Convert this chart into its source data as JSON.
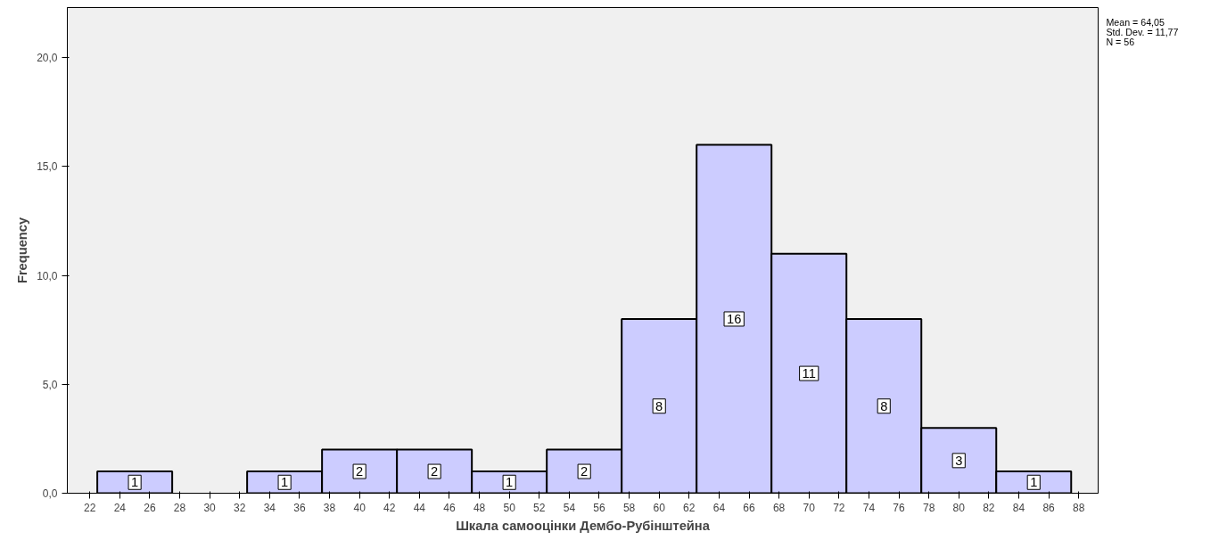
{
  "chart_data": {
    "type": "histogram",
    "xlabel": "Шкала самооцінки Дембо-Рубінштейна",
    "ylabel": "Frequency",
    "bins": [
      22.5,
      27.5,
      32.5,
      37.5,
      42.5,
      47.5,
      52.5,
      57.5,
      62.5,
      67.5,
      72.5,
      77.5,
      82.5,
      87.5
    ],
    "values": [
      1,
      0,
      1,
      2,
      2,
      1,
      2,
      8,
      16,
      11,
      8,
      3,
      1
    ],
    "value_labels": [
      "1",
      null,
      "1",
      "2",
      "2",
      "1",
      "2",
      "8",
      "16",
      "11",
      "8",
      "3",
      "1"
    ],
    "color": "#ccccff",
    "xlim": [
      20.5,
      89.3
    ],
    "xticks": [
      22,
      24,
      26,
      28,
      30,
      32,
      34,
      36,
      38,
      40,
      42,
      44,
      46,
      48,
      50,
      52,
      54,
      56,
      58,
      60,
      62,
      64,
      66,
      68,
      70,
      72,
      74,
      76,
      78,
      80,
      82,
      84,
      86,
      88
    ],
    "ylim": [
      0,
      22.3
    ],
    "yticks": [
      {
        "value": 0,
        "label": "0,0"
      },
      {
        "value": 5,
        "label": "5,0"
      },
      {
        "value": 10,
        "label": "10,0"
      },
      {
        "value": 15,
        "label": "15,0"
      },
      {
        "value": 20,
        "label": "20,0"
      }
    ],
    "grid": false,
    "annotations": [
      "Mean = 64,05",
      "Std. Dev. = 11,77",
      "N = 56"
    ]
  }
}
